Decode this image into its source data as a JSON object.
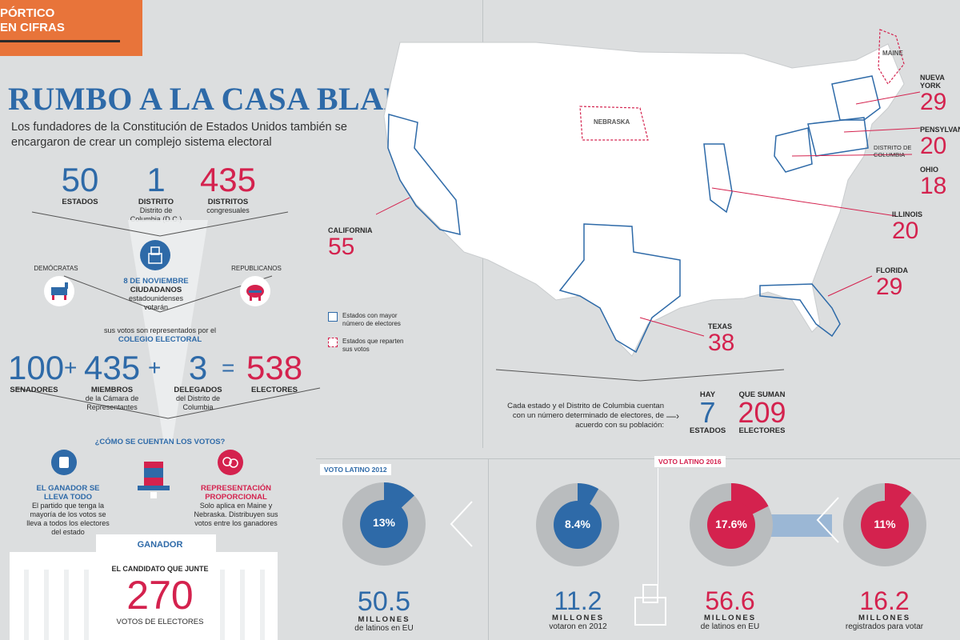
{
  "header": {
    "tag_line1": "PÓRTICO",
    "tag_line2": "EN CIFRAS"
  },
  "title": "RUMBO A LA CASA BLANCA",
  "subtitle": "Los fundadores de la Constitución de Estados Unidos también se encargaron de crear un complejo sistema electoral",
  "units": {
    "estados": {
      "value": "50",
      "label": "ESTADOS"
    },
    "distrito": {
      "value": "1",
      "label": "DISTRITO",
      "sub": "Distrito de Columbia (D.C.)"
    },
    "distritos": {
      "value": "435",
      "label": "DISTRITOS",
      "sub": "congresuales"
    }
  },
  "election": {
    "democrats": "DEMÓCRATAS",
    "republicans": "REPUBLICANOS",
    "date": "8 DE NOVIEMBRE",
    "citizens": "CIUDADANOS",
    "citizens_sub": "estadounidenses votarán",
    "represented": "sus votos son representados por el",
    "college": "COLEGIO ELECTORAL"
  },
  "equation": {
    "senators": {
      "value": "100",
      "label": "SENADORES"
    },
    "plus1": "+",
    "members": {
      "value": "435",
      "label": "MIEMBROS",
      "sub": "de la Cámara de Representantes"
    },
    "plus2": "+",
    "delegates": {
      "value": "3",
      "label": "DELEGADOS",
      "sub": "del Distrito de Columbia"
    },
    "equals": "=",
    "electors": {
      "value": "538",
      "label": "ELECTORES"
    }
  },
  "count": {
    "question": "¿CÓMO SE CUENTAN LOS VOTOS?",
    "winner_title": "EL GANADOR SE LLEVA TODO",
    "winner_text": "El partido que tenga la mayoría de los votos se lleva a todos los electores del estado",
    "prop_title": "REPRESENTACIÓN PROPORCIONAL",
    "prop_text": "Solo aplica en Maine y Nebraska. Distribuyen sus votos entre los ganadores"
  },
  "winner": {
    "banner": "GANADOR",
    "line": "EL CANDIDATO QUE JUNTE",
    "value": "270",
    "label": "VOTOS DE ELECTORES"
  },
  "map": {
    "states": [
      {
        "name": "MAINE"
      },
      {
        "name": "NEBRASKA"
      },
      {
        "name": "NUEVA YORK",
        "value": "29"
      },
      {
        "name": "PENSYLVANIA",
        "value": "20"
      },
      {
        "name": "DISTRITO DE COLUMBIA"
      },
      {
        "name": "OHIO",
        "value": "18"
      },
      {
        "name": "ILLINOIS",
        "value": "20"
      },
      {
        "name": "FLORIDA",
        "value": "29"
      },
      {
        "name": "CALIFORNIA",
        "value": "55"
      },
      {
        "name": "TEXAS",
        "value": "38"
      }
    ],
    "legend": {
      "blue": "Estados con mayor número de electores",
      "red": "Estados que reparten sus votos"
    },
    "summary_text": "Cada estado y el Distrito de Columbia cuentan con un número determinado de electores, de acuerdo con su población:",
    "hay": {
      "label": "HAY",
      "value": "7",
      "sub": "ESTADOS"
    },
    "suman": {
      "label": "QUE SUMAN",
      "value": "209",
      "sub": "ELECTORES"
    }
  },
  "latino2012": {
    "tag": "VOTO LATINO 2012",
    "pct_label": "13%",
    "pct": 13,
    "value": "50.5",
    "unit": "MILLONES",
    "text": "de latinos en EU"
  },
  "latino2016": {
    "tag": "VOTO LATINO 2016",
    "items": [
      {
        "pct_label": "8.4%",
        "pct": 8.4,
        "value": "11.2",
        "unit": "MILLONES",
        "text": "votaron en 2012",
        "color": "#2e6aa8"
      },
      {
        "pct_label": "17.6%",
        "pct": 17.6,
        "value": "56.6",
        "unit": "MILLONES",
        "text": "de latinos en EU",
        "color": "#d4224e"
      },
      {
        "pct_label": "11%",
        "pct": 11,
        "value": "16.2",
        "unit": "MILLONES",
        "text": "registrados para votar",
        "color": "#d4224e"
      }
    ]
  },
  "colors": {
    "blue": "#2e6aa8",
    "red": "#d4224e",
    "orange": "#e8743a",
    "gray_ring": "#b9bcbe"
  }
}
